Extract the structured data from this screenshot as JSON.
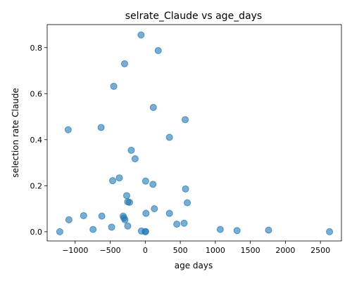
{
  "chart_data": {
    "type": "scatter",
    "title": "selrate_Claude vs age_days",
    "xlabel": "age days",
    "ylabel": "selection rate Claude",
    "xlim": [
      -1400,
      2800
    ],
    "ylim": [
      -0.04,
      0.9
    ],
    "xticks": [
      -1000,
      -500,
      0,
      500,
      1000,
      1500,
      2000,
      2500
    ],
    "xtick_labels": [
      "−1000",
      "−500",
      "0",
      "500",
      "1000",
      "1500",
      "2000",
      "2500"
    ],
    "yticks": [
      0.0,
      0.2,
      0.4,
      0.6,
      0.8
    ],
    "ytick_labels": [
      "0.0",
      "0.2",
      "0.4",
      "0.6",
      "0.8"
    ],
    "grid": false,
    "marker_color": "#1f77b4",
    "marker_alpha": 0.6,
    "series": [
      {
        "points": [
          {
            "x": -1220,
            "y": 0.0
          },
          {
            "x": -1100,
            "y": 0.443
          },
          {
            "x": -1090,
            "y": 0.052
          },
          {
            "x": -880,
            "y": 0.07
          },
          {
            "x": -745,
            "y": 0.01
          },
          {
            "x": -630,
            "y": 0.453
          },
          {
            "x": -620,
            "y": 0.068
          },
          {
            "x": -480,
            "y": 0.02
          },
          {
            "x": -465,
            "y": 0.222
          },
          {
            "x": -450,
            "y": 0.632
          },
          {
            "x": -370,
            "y": 0.234
          },
          {
            "x": -315,
            "y": 0.068
          },
          {
            "x": -305,
            "y": 0.06
          },
          {
            "x": -295,
            "y": 0.73
          },
          {
            "x": -290,
            "y": 0.052
          },
          {
            "x": -265,
            "y": 0.157
          },
          {
            "x": -250,
            "y": 0.13
          },
          {
            "x": -250,
            "y": 0.025
          },
          {
            "x": -225,
            "y": 0.128
          },
          {
            "x": -200,
            "y": 0.354
          },
          {
            "x": -145,
            "y": 0.317
          },
          {
            "x": -60,
            "y": 0.855
          },
          {
            "x": -55,
            "y": 0.003
          },
          {
            "x": 0,
            "y": 0.0
          },
          {
            "x": 5,
            "y": 0.001
          },
          {
            "x": 5,
            "y": 0.22
          },
          {
            "x": 10,
            "y": 0.08
          },
          {
            "x": 110,
            "y": 0.206
          },
          {
            "x": 115,
            "y": 0.54
          },
          {
            "x": 130,
            "y": 0.1
          },
          {
            "x": 185,
            "y": 0.787
          },
          {
            "x": 345,
            "y": 0.41
          },
          {
            "x": 345,
            "y": 0.08
          },
          {
            "x": 450,
            "y": 0.033
          },
          {
            "x": 555,
            "y": 0.037
          },
          {
            "x": 570,
            "y": 0.487
          },
          {
            "x": 575,
            "y": 0.186
          },
          {
            "x": 600,
            "y": 0.126
          },
          {
            "x": 1070,
            "y": 0.01
          },
          {
            "x": 1310,
            "y": 0.005
          },
          {
            "x": 1760,
            "y": 0.007
          },
          {
            "x": 2630,
            "y": 0.0
          }
        ]
      }
    ]
  }
}
